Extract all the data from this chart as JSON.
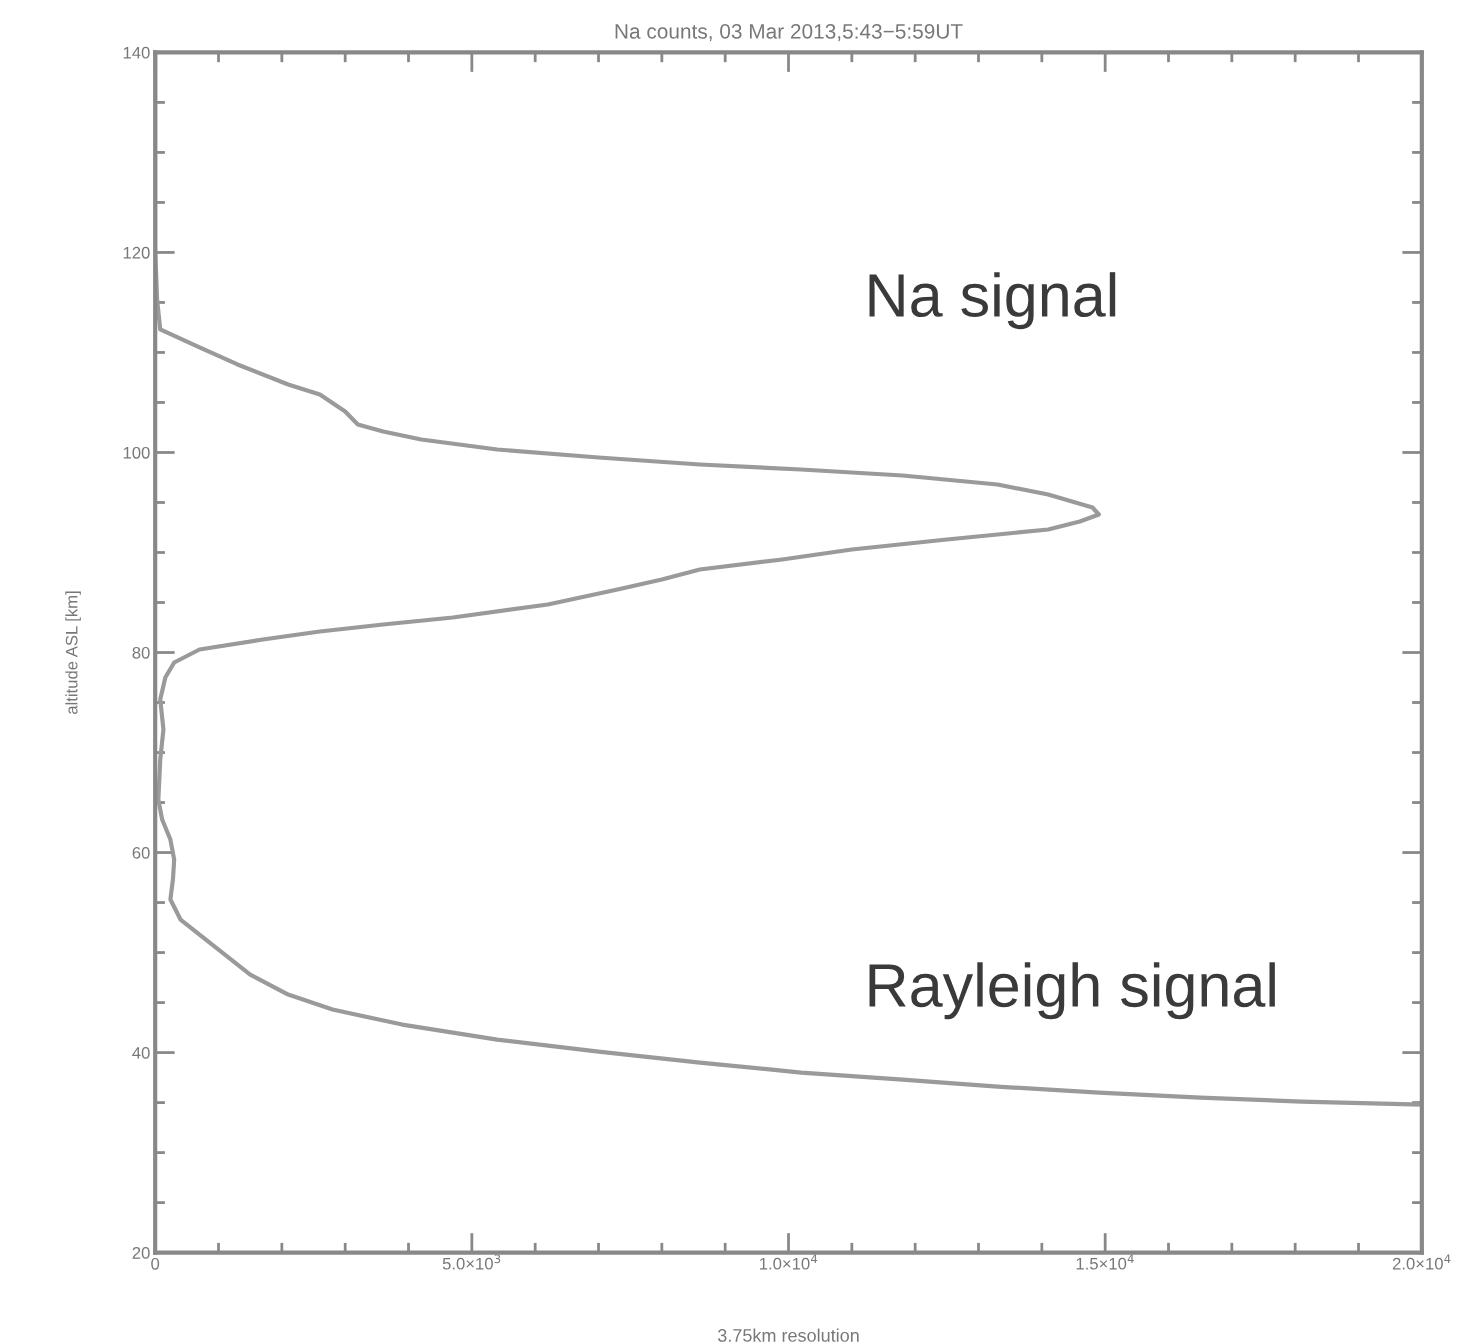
{
  "chart_data": {
    "type": "line",
    "title": "Na counts, 03 Mar 2013,5:43−5:59UT",
    "xlabel": "3.75km resolution",
    "ylabel": "altitude ASL [km]",
    "annotations": [
      "Na signal",
      "Rayleigh signal"
    ],
    "series": [
      {
        "color": "#9a9a9a",
        "x": [
          0,
          0,
          30,
          80,
          700,
          1300,
          2100,
          2600,
          3000,
          3200,
          3600,
          4200,
          5400,
          7000,
          8600,
          10200,
          11800,
          13300,
          14100,
          14800,
          14900,
          14600,
          14100,
          12500,
          11000,
          9900,
          8600,
          8000,
          7300,
          6200,
          4700,
          3600,
          2600,
          1700,
          700,
          300,
          160,
          80,
          130,
          80,
          50,
          110,
          240,
          300,
          280,
          240,
          400,
          700,
          1000,
          1500,
          2100,
          2800,
          3900,
          5400,
          7000,
          8600,
          10200,
          11800,
          13300,
          14900,
          16500,
          18100,
          20000
        ],
        "values": [
          140,
          120.3,
          115.3,
          112.3,
          110.5,
          108.8,
          106.8,
          105.8,
          104.1,
          102.8,
          102.1,
          101.3,
          100.3,
          99.5,
          98.8,
          98.3,
          97.7,
          96.8,
          95.8,
          94.5,
          93.8,
          93.1,
          92.3,
          91.3,
          90.3,
          89.3,
          88.3,
          87.3,
          86.3,
          84.8,
          83.5,
          82.8,
          82.1,
          81.3,
          80.3,
          79.0,
          77.5,
          75.3,
          72.3,
          69.3,
          65.3,
          63.3,
          61.3,
          59.3,
          57.3,
          55.3,
          53.3,
          51.8,
          50.3,
          47.8,
          45.8,
          44.3,
          42.8,
          41.3,
          40.1,
          39.0,
          38.0,
          37.3,
          36.6,
          36.0,
          35.5,
          35.1,
          34.8
        ]
      }
    ],
    "xlim": [
      0,
      20000
    ],
    "ylim": [
      20,
      140
    ],
    "xticks": [
      0,
      {
        "value": 5000,
        "label": "5.0×10$^{3}$"
      },
      {
        "value": 10000,
        "label": "1.0×10$^{4}$"
      },
      {
        "value": 15000,
        "label": "1.5×10$^{4}$"
      },
      {
        "value": 20000,
        "label": "2.0×10$^{4}$"
      }
    ],
    "yticks": [
      20,
      40,
      60,
      80,
      100,
      120,
      140
    ],
    "grid": false,
    "legend": false,
    "marker": "none",
    "line_style": "solid"
  }
}
